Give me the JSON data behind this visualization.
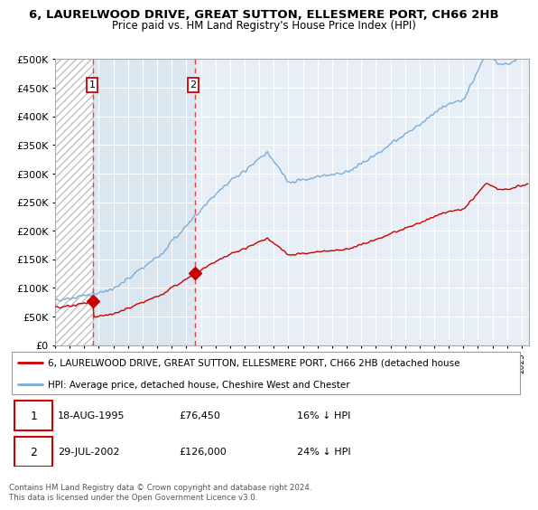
{
  "title": "6, LAURELWOOD DRIVE, GREAT SUTTON, ELLESMERE PORT, CH66 2HB",
  "subtitle": "Price paid vs. HM Land Registry's House Price Index (HPI)",
  "ylim": [
    0,
    500000
  ],
  "yticks": [
    0,
    50000,
    100000,
    150000,
    200000,
    250000,
    300000,
    350000,
    400000,
    450000,
    500000
  ],
  "ytick_labels": [
    "£0",
    "£50K",
    "£100K",
    "£150K",
    "£200K",
    "£250K",
    "£300K",
    "£350K",
    "£400K",
    "£450K",
    "£500K"
  ],
  "xlim": [
    1993,
    2025.5
  ],
  "sale1_date": 1995.63,
  "sale1_price": 76450,
  "sale2_date": 2002.57,
  "sale2_price": 126000,
  "legend_line1": "6, LAURELWOOD DRIVE, GREAT SUTTON, ELLESMERE PORT, CH66 2HB (detached house",
  "legend_line2": "HPI: Average price, detached house, Cheshire West and Chester",
  "table_row1": [
    "1",
    "18-AUG-1995",
    "£76,450",
    "16% ↓ HPI"
  ],
  "table_row2": [
    "2",
    "29-JUL-2002",
    "£126,000",
    "24% ↓ HPI"
  ],
  "footer": "Contains HM Land Registry data © Crown copyright and database right 2024.\nThis data is licensed under the Open Government Licence v3.0.",
  "line_color_red": "#cc0000",
  "line_color_blue": "#7aaddb",
  "background_plot": "#e8eef5",
  "hatch_bg": "#ffffff",
  "grid_color": "#ffffff",
  "vline_color": "#dd4444",
  "marker_color": "#cc0000",
  "between_fill_color": "#dae6f0"
}
